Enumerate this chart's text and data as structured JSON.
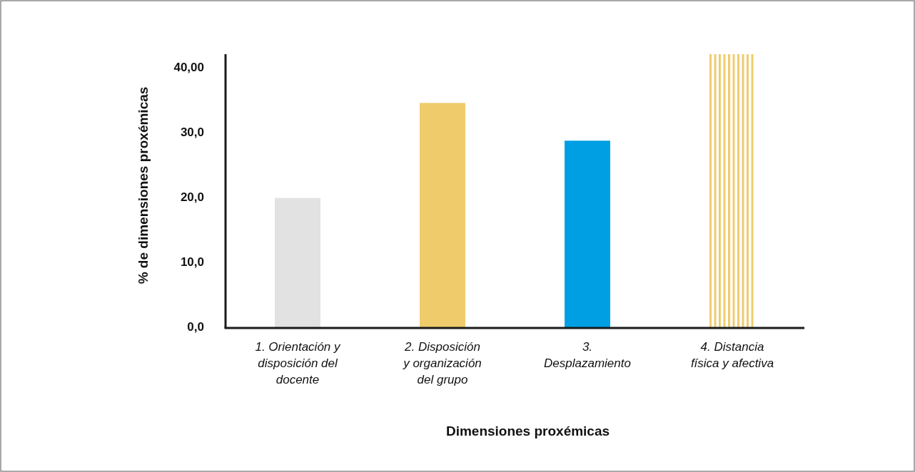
{
  "chart_data": {
    "type": "bar",
    "xlabel": "Dimensiones proxémicas",
    "ylabel": "% de dimensiones proxémicas",
    "categories": [
      "1. Orientación y\ndisposición del\ndocente",
      "2. Disposición\ny organización\ndel grupo",
      "3.\nDesplazamiento",
      "4. Distancia\nfísica y afectiva"
    ],
    "values": [
      20.0,
      34.6,
      28.8,
      42.1
    ],
    "colors": [
      "#e2e2e2",
      "#efcb6c",
      "#009fe3",
      "#efcb6c"
    ],
    "ylim": [
      0,
      42.1
    ],
    "yticks": [
      {
        "value": 0,
        "label": "0,0"
      },
      {
        "value": 10,
        "label": "10,0"
      },
      {
        "value": 20,
        "label": "20,0"
      },
      {
        "value": 30,
        "label": "30,0"
      },
      {
        "value": 40,
        "label": "40,00"
      }
    ],
    "grid": false
  }
}
